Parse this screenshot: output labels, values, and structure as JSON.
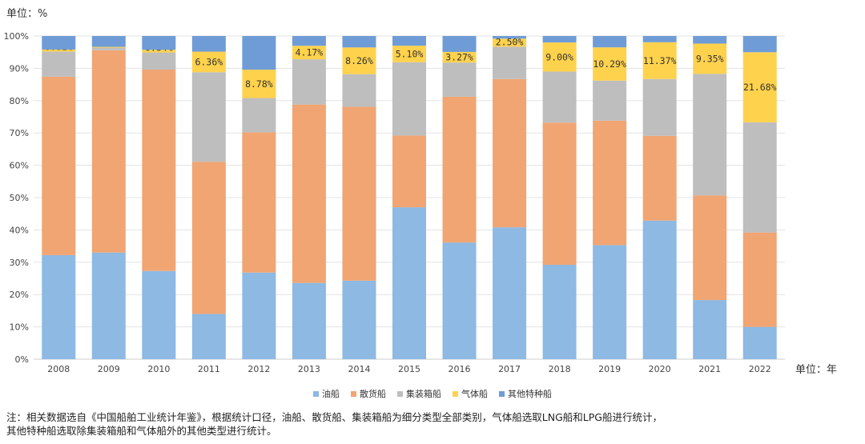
{
  "y_unit_label": "单位：%",
  "x_unit_label": "单位：年",
  "note_lines": [
    "注：相关数据选自《中国船舶工业统计年鉴》，根据统计口径，油船、散货船、集装箱船为细分类型全部类别，气体船选取LNG船和LPG船进行统计，",
    "其他特种船选取除集装箱船和气体船外的其他类型进行统计。"
  ],
  "chart_data": {
    "type": "bar",
    "stacked": true,
    "categories": [
      "2008",
      "2009",
      "2010",
      "2011",
      "2012",
      "2013",
      "2014",
      "2015",
      "2016",
      "2017",
      "2018",
      "2019",
      "2020",
      "2021",
      "2022"
    ],
    "y_ticks": [
      "0%",
      "10%",
      "20%",
      "30%",
      "40%",
      "50%",
      "60%",
      "70%",
      "80%",
      "90%",
      "100%"
    ],
    "ylim": [
      0,
      100
    ],
    "grid": true,
    "legend_position": "bottom",
    "series": [
      {
        "name": "油船",
        "color": "#8DB9E3",
        "values": [
          32.2,
          33.0,
          27.3,
          14.0,
          26.8,
          23.6,
          24.3,
          47.0,
          36.1,
          40.8,
          29.2,
          35.3,
          42.9,
          18.3,
          10.0
        ]
      },
      {
        "name": "散货船",
        "color": "#F0A573",
        "values": [
          55.2,
          62.6,
          62.3,
          47.1,
          43.4,
          55.2,
          53.8,
          22.2,
          45.1,
          45.9,
          44.0,
          38.5,
          26.2,
          32.4,
          29.2
        ]
      },
      {
        "name": "集装箱船",
        "color": "#BEBEBE",
        "values": [
          7.8,
          0.8,
          5.3,
          27.7,
          10.6,
          14.0,
          10.1,
          22.7,
          10.6,
          10.0,
          15.8,
          12.4,
          17.6,
          37.6,
          34.1
        ]
      },
      {
        "name": "气体船",
        "color": "#FFD24D",
        "values": [
          0.61,
          0.24,
          0.84,
          6.36,
          8.78,
          4.17,
          8.26,
          5.1,
          3.27,
          2.5,
          9.0,
          10.29,
          11.37,
          9.35,
          21.68
        ]
      },
      {
        "name": "其他特种船",
        "color": "#6F9CD6",
        "values": [
          4.19,
          3.36,
          4.26,
          4.84,
          10.42,
          3.03,
          3.54,
          3.0,
          4.93,
          0.8,
          2.0,
          3.51,
          1.93,
          2.35,
          5.02
        ]
      }
    ],
    "data_labels": {
      "series": "气体船",
      "texts": [
        "0.61%",
        "0.24%",
        "0.84%",
        "6.36%",
        "8.78%",
        "4.17%",
        "8.26%",
        "5.10%",
        "3.27%",
        "2.50%",
        "9.00%",
        "10.29%",
        "11.37%",
        "9.35%",
        "21.68%"
      ]
    }
  }
}
